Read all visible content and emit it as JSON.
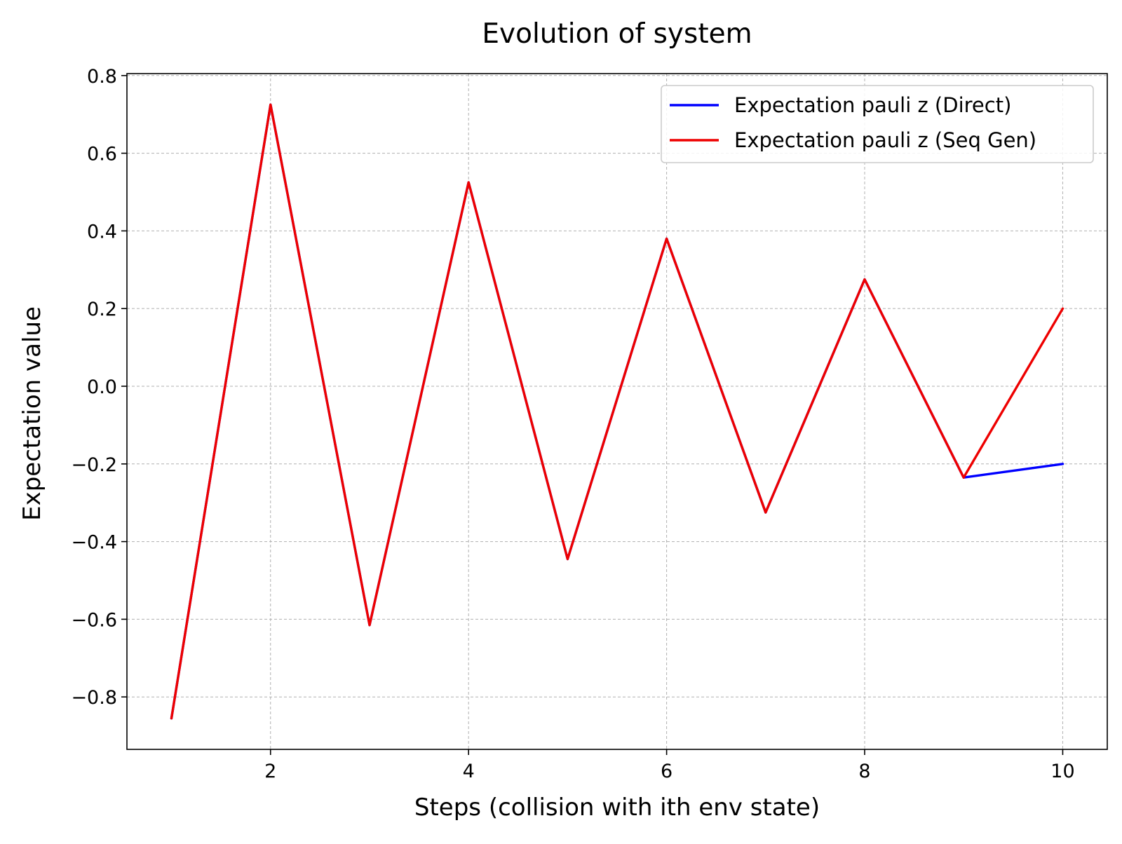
{
  "chart_data": {
    "type": "line",
    "title": "Evolution of system",
    "xlabel": "Steps (collision with ith env state)",
    "ylabel": "Expectation value",
    "x": [
      1,
      2,
      3,
      4,
      5,
      6,
      7,
      8,
      9,
      10
    ],
    "xlim": [
      0.55,
      10.45
    ],
    "ylim": [
      -0.935,
      0.805
    ],
    "xticks": [
      2,
      4,
      6,
      8,
      10
    ],
    "xtick_labels": [
      "2",
      "4",
      "6",
      "8",
      "10"
    ],
    "yticks": [
      0.8,
      0.6,
      0.4,
      0.2,
      0.0,
      -0.2,
      -0.4,
      -0.6,
      -0.8
    ],
    "ytick_labels": [
      "0.8",
      "0.6",
      "0.4",
      "0.2",
      "0.0",
      "−0.2",
      "−0.4",
      "−0.6",
      "−0.8"
    ],
    "grid": true,
    "legend_position": "top-right",
    "series": [
      {
        "name": "Expectation pauli z (Direct)",
        "color": "#0000ff",
        "values": [
          -0.855,
          0.725,
          -0.615,
          0.525,
          -0.445,
          0.38,
          -0.325,
          0.275,
          -0.235,
          -0.2
        ]
      },
      {
        "name": "Expectation pauli z (Seq Gen)",
        "color": "#ee0000",
        "values": [
          -0.855,
          0.725,
          -0.615,
          0.525,
          -0.445,
          0.38,
          -0.325,
          0.275,
          -0.235,
          0.2
        ]
      }
    ]
  }
}
